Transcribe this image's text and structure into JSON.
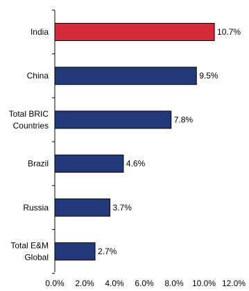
{
  "chart_data": {
    "type": "bar",
    "orientation": "horizontal",
    "categories": [
      [
        "India"
      ],
      [
        "China"
      ],
      [
        "Total BRIC",
        "Countries"
      ],
      [
        "Brazil"
      ],
      [
        "Russia"
      ],
      [
        "Total E&M",
        "Global"
      ]
    ],
    "values": [
      10.7,
      9.5,
      7.8,
      4.6,
      3.7,
      2.7
    ],
    "value_labels": [
      "10.7%",
      "9.5%",
      "7.8%",
      "4.6%",
      "3.7%",
      "2.7%"
    ],
    "bar_colors": [
      "#d42a3a",
      "#243a78",
      "#243a78",
      "#243a78",
      "#243a78",
      "#243a78"
    ],
    "xlim": [
      0,
      12
    ],
    "xticks": [
      0,
      2,
      4,
      6,
      8,
      10,
      12
    ],
    "xtick_labels": [
      "0.0%",
      "2.0%",
      "4.0%",
      "6.0%",
      "8.0%",
      "10.0%",
      "12.0%"
    ],
    "grid": false,
    "legend": "none"
  }
}
